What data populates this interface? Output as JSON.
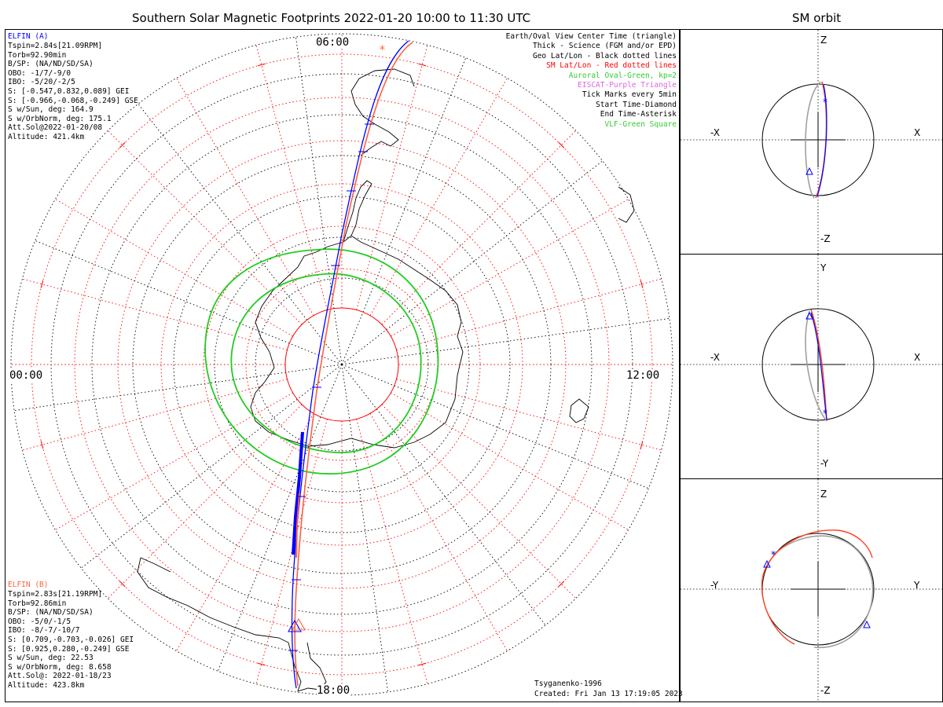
{
  "main_title": "Southern Solar Magnetic Footprints 2022-01-20 10:00 to 11:30 UTC",
  "orbit_title": "SM orbit",
  "mlt": {
    "top": "06:00",
    "bottom": "18:00",
    "left": "00:00",
    "right": "12:00"
  },
  "elfin_a": {
    "name": "ELFIN (A)",
    "color": "#0000ff",
    "lines": [
      "Tspin=2.84s[21.09RPM]",
      "Torb=92.90min",
      "B/SP: (NA/ND/SD/SA)",
      "OBO: -1/7/-9/0",
      "IBO: -5/20/-2/5",
      "S: [-0.547,0.832,0.089] GEI",
      "S: [-0.966,-0.068,-0.249] GSE",
      "S w/Sun, deg: 164.9",
      "S w/OrbNorm, deg: 175.1",
      "Att.Sol@2022-01-20/08",
      "Altitude: 421.4km"
    ]
  },
  "elfin_b": {
    "name": "ELFIN (B)",
    "color": "#ff6040",
    "lines": [
      "Tspin=2.83s[21.19RPM]",
      "Torb=92.86min",
      "B/SP: (NA/ND/SD/SA)",
      "OBO: -5/0/-1/5",
      "IBO: -8/-7/-10/7",
      "S: [0.709,-0.703,-0.026] GEI",
      "S: [0.925,0.280,-0.249] GSE",
      "S w/Sun, deg: 22.53",
      "S w/OrbNorm, deg: 8.658",
      "Att.Sol@: 2022-01-18/23",
      "Altitude: 423.8km"
    ]
  },
  "legend": [
    {
      "text": "Earth/Oval View Center Time (triangle)",
      "color": "#000000"
    },
    {
      "text": "Thick - Science (FGM and/or EPD)",
      "color": "#000000"
    },
    {
      "text": "Geo Lat/Lon - Black dotted lines",
      "color": "#000000"
    },
    {
      "text": "SM Lat/Lon - Red dotted lines",
      "color": "#ff0000"
    },
    {
      "text": "Auroral Oval-Green, kp=2",
      "color": "#33cc33"
    },
    {
      "text": "EISCAT-Purple Triangle",
      "color": "#dd66dd"
    },
    {
      "text": "Tick Marks every 5min",
      "color": "#000000"
    },
    {
      "text": "Start Time-Diamond",
      "color": "#000000"
    },
    {
      "text": "End Time-Asterisk",
      "color": "#000000"
    },
    {
      "text": "VLF-Green Square",
      "color": "#33cc33"
    }
  ],
  "model": "Tsyganenko-1996",
  "created": "Created: Fri Jan 13 17:19:05 2023",
  "orbit_panels": [
    {
      "top": "Z",
      "bottom": "-Z",
      "left": "-X",
      "right": "X"
    },
    {
      "top": "Y",
      "bottom": "-Y",
      "left": "-X",
      "right": "X"
    },
    {
      "top": "Z",
      "bottom": "-Z",
      "left": "-Y",
      "right": "Y"
    }
  ],
  "colors": {
    "oval": "#22cc22",
    "sm_grid": "#ff0000",
    "geo_grid": "#000000",
    "track_a": "#0000ff",
    "track_b": "#ff6040",
    "orbit_gray": "#a0a0a0"
  }
}
